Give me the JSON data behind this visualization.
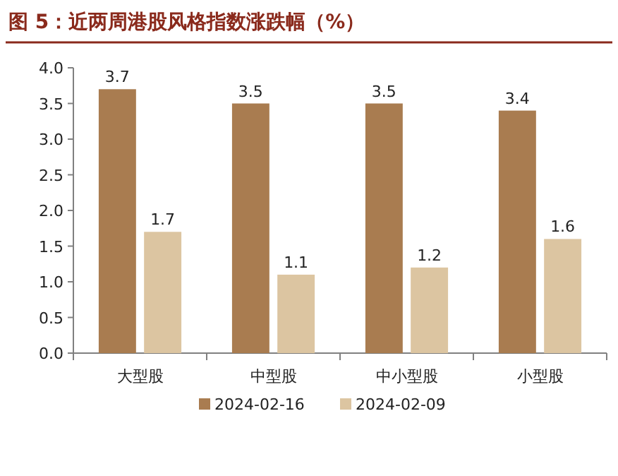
{
  "chart_data": {
    "type": "bar",
    "title": "图 5：近两周港股风格指数涨跌幅（%）",
    "categories": [
      "大型股",
      "中型股",
      "中小型股",
      "小型股"
    ],
    "series": [
      {
        "name": "2024-02-16",
        "color": "#a97c50",
        "values": [
          3.7,
          3.5,
          3.5,
          3.4
        ]
      },
      {
        "name": "2024-02-09",
        "color": "#dcc5a1",
        "values": [
          1.7,
          1.1,
          1.2,
          1.6
        ]
      }
    ],
    "ylim": [
      0,
      4
    ],
    "yticks": [
      {
        "value": 0,
        "label": "0.0"
      },
      0.5,
      {
        "value": 1,
        "label": "1.0"
      },
      1.5,
      {
        "value": 2,
        "label": "2.0"
      },
      2.5,
      {
        "value": 3,
        "label": "3.0"
      },
      3.5,
      {
        "value": 4,
        "label": "4.0"
      }
    ],
    "data_labels": true,
    "legend": "bottom"
  }
}
